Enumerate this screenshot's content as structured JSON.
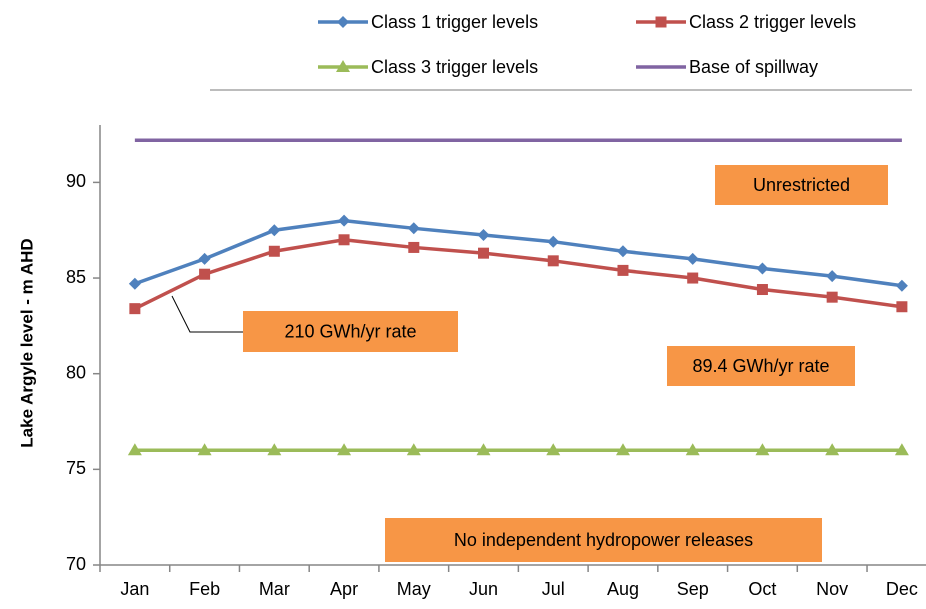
{
  "chart_data": {
    "type": "line",
    "y_label": "Lake Argyle level - m AHD",
    "categories": [
      "Jan",
      "Feb",
      "Mar",
      "Apr",
      "May",
      "Jun",
      "Jul",
      "Aug",
      "Sep",
      "Oct",
      "Nov",
      "Dec"
    ],
    "series": [
      {
        "name": "Class 1 trigger levels",
        "color": "#4f81bd",
        "marker": "diamond",
        "values": [
          84.7,
          86.0,
          87.5,
          88.0,
          87.6,
          87.25,
          86.9,
          86.4,
          86.0,
          85.5,
          85.1,
          84.6
        ]
      },
      {
        "name": "Class 2 trigger levels",
        "color": "#c0504d",
        "marker": "square",
        "values": [
          83.4,
          85.2,
          86.4,
          87.0,
          86.6,
          86.3,
          85.9,
          85.4,
          85.0,
          84.4,
          84.0,
          83.5
        ]
      },
      {
        "name": "Class 3 trigger levels",
        "color": "#9bbb59",
        "marker": "triangle",
        "values": [
          76,
          76,
          76,
          76,
          76,
          76,
          76,
          76,
          76,
          76,
          76,
          76
        ]
      },
      {
        "name": "Base of spillway",
        "color": "#8064a2",
        "marker": "none",
        "values": [
          92.2,
          92.2,
          92.2,
          92.2,
          92.2,
          92.2,
          92.2,
          92.2,
          92.2,
          92.2,
          92.2,
          92.2
        ]
      }
    ],
    "ylim": [
      70,
      93
    ],
    "yticks": [
      70,
      75,
      80,
      85,
      90
    ],
    "annotations": [
      "Unrestricted",
      "210 GWh/yr rate",
      "89.4 GWh/yr rate",
      "No independent  hydropower releases"
    ],
    "annotation_color": "#f79646"
  }
}
